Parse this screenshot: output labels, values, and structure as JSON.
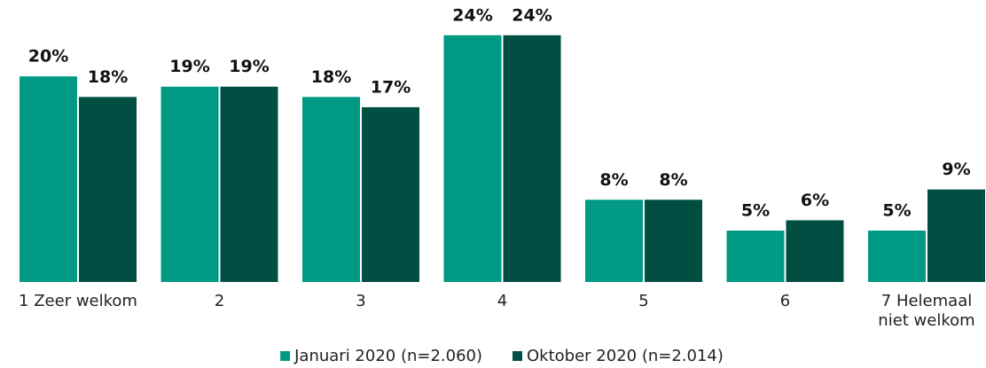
{
  "chart_data": {
    "type": "bar",
    "categories": [
      "1 Zeer welkom",
      "2",
      "3",
      "4",
      "5",
      "6",
      "7 Helemaal niet welkom"
    ],
    "series": [
      {
        "name": "Januari 2020 (n=2.060)",
        "color": "#009a84",
        "values": [
          20,
          19,
          18,
          24,
          8,
          5,
          5
        ],
        "value_labels": [
          "20%",
          "19%",
          "18%",
          "24%",
          "8%",
          "5%",
          "5%"
        ]
      },
      {
        "name": "Oktober 2020 (n=2.014)",
        "color": "#004f42",
        "values": [
          18,
          19,
          17,
          24,
          8,
          6,
          9
        ],
        "value_labels": [
          "18%",
          "19%",
          "17%",
          "24%",
          "8%",
          "6%",
          "9%"
        ]
      }
    ],
    "ylim": [
      0,
      27
    ],
    "legend": "bottom"
  }
}
